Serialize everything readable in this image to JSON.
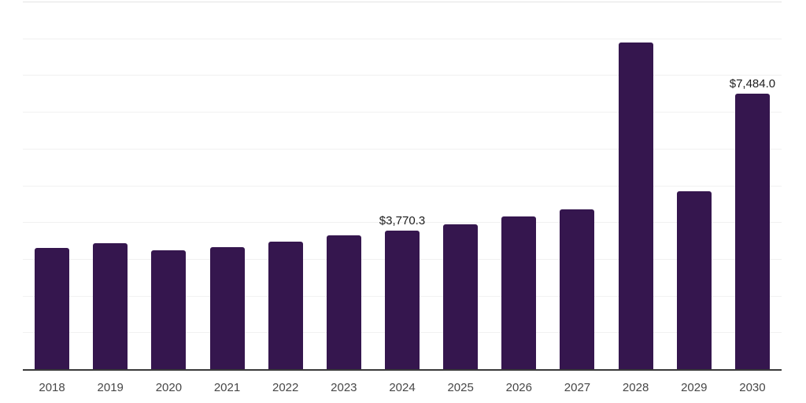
{
  "chart_data": {
    "type": "bar",
    "title": "",
    "xlabel": "",
    "ylabel": "",
    "categories": [
      "2018",
      "2019",
      "2020",
      "2021",
      "2022",
      "2023",
      "2024",
      "2025",
      "2026",
      "2027",
      "2028",
      "2029",
      "2030"
    ],
    "values": [
      3290.0,
      3426.0,
      3243.0,
      3312.0,
      3477.0,
      3633.0,
      3770.3,
      3941.0,
      4153.0,
      4347.0,
      8884.0,
      4830.0,
      7484.0
    ],
    "annotations": [
      {
        "category": "2024",
        "text": "$3,770.3"
      },
      {
        "category": "2030",
        "text": "$7,484.0"
      }
    ],
    "ylim": [
      0,
      10000
    ],
    "gridline_step": 1000,
    "grid": "horizontal-only",
    "legend_position": "none",
    "y_tick_labels_visible": false
  },
  "colors": {
    "bar": "#35164E",
    "axis_line": "#3a3a3a",
    "gridline": "#f1f1f1",
    "gridline_top": "#e3e3e3",
    "tick_label": "#474747",
    "data_label": "#1d1d1d",
    "background": "#ffffff"
  }
}
